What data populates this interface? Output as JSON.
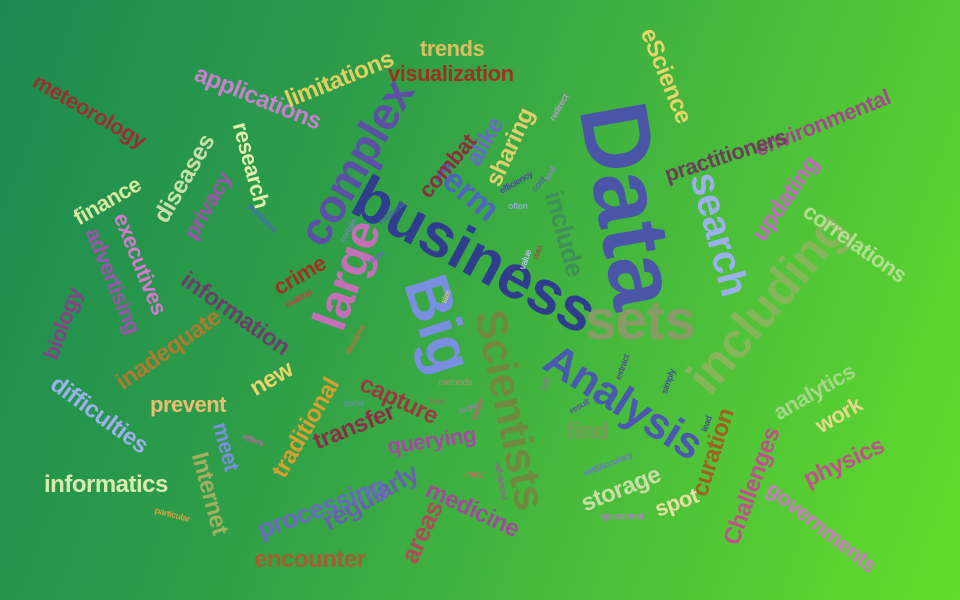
{
  "words": [
    {
      "text": "Data",
      "color": "#4a55a8"
    },
    {
      "text": "business",
      "color": "#2f3d8c"
    },
    {
      "text": "Big",
      "color": "#7a8fe0"
    },
    {
      "text": "Analysis",
      "color": "#4a58b0"
    },
    {
      "text": "Scientists",
      "color": "#6f8a3e"
    },
    {
      "text": "large",
      "color": "#c46fb8"
    },
    {
      "text": "complex",
      "color": "#5b4fa6"
    },
    {
      "text": "sets",
      "color": "#8c9a6a"
    },
    {
      "text": "including",
      "color": "#86b55a"
    },
    {
      "text": "search",
      "color": "#9db0ee"
    },
    {
      "text": "term",
      "color": "#4e66b8"
    },
    {
      "text": "include",
      "color": "#3f8f58"
    },
    {
      "text": "eScience",
      "color": "#e8d66a"
    },
    {
      "text": "environmental",
      "color": "#a04a8a"
    },
    {
      "text": "practitioners",
      "color": "#6b3f5a"
    },
    {
      "text": "updating",
      "color": "#c06ac0"
    },
    {
      "text": "correlations",
      "color": "#b3e090"
    },
    {
      "text": "analytics",
      "color": "#a8d68a"
    },
    {
      "text": "work",
      "color": "#e7d98a"
    },
    {
      "text": "physics",
      "color": "#c0508a"
    },
    {
      "text": "Challenges",
      "color": "#c0508a"
    },
    {
      "text": "governments",
      "color": "#cc7ac4"
    },
    {
      "text": "curation",
      "color": "#a0601f"
    },
    {
      "text": "find",
      "color": "#7a9a5a"
    },
    {
      "text": "spot",
      "color": "#e8e0a0"
    },
    {
      "text": "storage",
      "color": "#c8e0a8"
    },
    {
      "text": "medicine",
      "color": "#a04a9a"
    },
    {
      "text": "areas",
      "color": "#b04a5a"
    },
    {
      "text": "regularly",
      "color": "#6a5fb0"
    },
    {
      "text": "processing",
      "color": "#6a6ac0"
    },
    {
      "text": "encounter",
      "color": "#a06030"
    },
    {
      "text": "Internet",
      "color": "#a0b060"
    },
    {
      "text": "meet",
      "color": "#7a8fe0"
    },
    {
      "text": "querying",
      "color": "#a44aa0"
    },
    {
      "text": "transfer",
      "color": "#8a2f45"
    },
    {
      "text": "capture",
      "color": "#9a3a40"
    },
    {
      "text": "traditional",
      "color": "#d8a030"
    },
    {
      "text": "new",
      "color": "#e8d66a"
    },
    {
      "text": "prevent",
      "color": "#e8c070"
    },
    {
      "text": "informatics",
      "color": "#d8ecb0"
    },
    {
      "text": "difficulties",
      "color": "#9db0ee"
    },
    {
      "text": "inadequate",
      "color": "#b07a30"
    },
    {
      "text": "information",
      "color": "#6a3f6a"
    },
    {
      "text": "crime",
      "color": "#a0301f"
    },
    {
      "text": "biology",
      "color": "#8a3f8a"
    },
    {
      "text": "advertising",
      "color": "#a050b0"
    },
    {
      "text": "executives",
      "color": "#d47ad0"
    },
    {
      "text": "finance",
      "color": "#d8e8a0"
    },
    {
      "text": "diseases",
      "color": "#c8e0a8"
    },
    {
      "text": "privacy",
      "color": "#a050b0"
    },
    {
      "text": "research",
      "color": "#e0f0b0"
    },
    {
      "text": "meteorology",
      "color": "#9a2f30"
    },
    {
      "text": "applications",
      "color": "#c880d0"
    },
    {
      "text": "limitations",
      "color": "#e0d060"
    },
    {
      "text": "trends",
      "color": "#d8c060"
    },
    {
      "text": "visualization",
      "color": "#a0301f"
    },
    {
      "text": "alike",
      "color": "#6a6ac8"
    },
    {
      "text": "combat",
      "color": "#8a2f40"
    },
    {
      "text": "sharing",
      "color": "#e0d070"
    },
    {
      "text": "efficiency",
      "color": "#4a4aa0"
    },
    {
      "text": "cost",
      "color": "#5a6a9a"
    },
    {
      "text": "often",
      "color": "#8ab0c0"
    },
    {
      "text": "tool",
      "color": "#8a8ac0"
    },
    {
      "text": "certain",
      "color": "#6a8ab0"
    },
    {
      "text": "predictive",
      "color": "#4a6ab0"
    },
    {
      "text": "making",
      "color": "#c04040"
    },
    {
      "text": "value",
      "color": "#b0c0e0"
    },
    {
      "text": "extract",
      "color": "#5a4a9a"
    },
    {
      "text": "simply",
      "color": "#4a4a9a"
    },
    {
      "text": "lead",
      "color": "#4a4a9a"
    },
    {
      "text": "result",
      "color": "#5a5aa0"
    },
    {
      "text": "methods",
      "color": "#8a9a60"
    },
    {
      "text": "better",
      "color": "#b06a70"
    },
    {
      "text": "advanced",
      "color": "#8a6a8a"
    },
    {
      "text": "may",
      "color": "#c07060"
    },
    {
      "text": "refers",
      "color": "#b06aa0"
    },
    {
      "text": "particular",
      "color": "#d0a040"
    },
    {
      "text": "operational",
      "color": "#b080c0"
    },
    {
      "text": "seldAccuracy",
      "color": "#6a7ac0"
    },
    {
      "text": "redirect",
      "color": "#b0a0c0"
    },
    {
      "text": "relational",
      "color": "#4a6aa0"
    },
    {
      "text": "decisions",
      "color": "#c07040"
    },
    {
      "text": "exist",
      "color": "#6a6ac0"
    },
    {
      "text": "size",
      "color": "#d0c080"
    },
    {
      "text": "help",
      "color": "#a06a60"
    },
    {
      "text": "social",
      "color": "#6a8ac0"
    },
    {
      "text": "use",
      "color": "#a06ab0"
    },
    {
      "text": "data",
      "color": "#8a5a40"
    },
    {
      "text": "larger",
      "color": "#8a8aa0"
    }
  ]
}
